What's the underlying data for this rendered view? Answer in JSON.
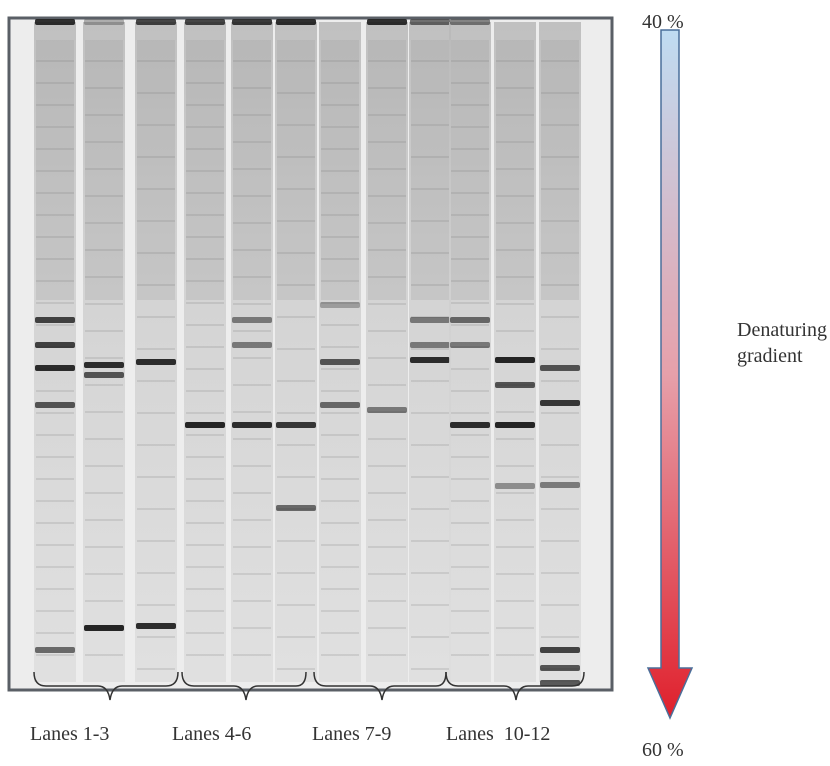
{
  "gradient": {
    "top": "40 %",
    "bottom": "60 %",
    "label": [
      "Denaturing",
      "gradient"
    ]
  },
  "lane_groups": [
    "Lanes 1-3",
    "Lanes 4-6",
    "Lanes 7-9",
    "Lanes  10-12"
  ]
}
